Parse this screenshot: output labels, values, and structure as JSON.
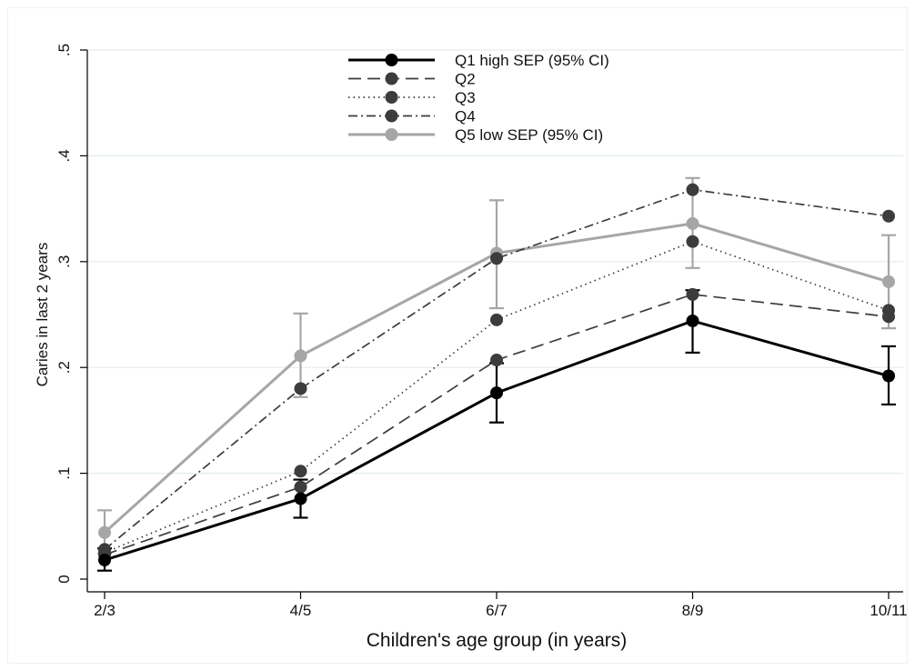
{
  "chart_data": {
    "type": "line",
    "xlabel": "Children's age group (in years)",
    "ylabel": "Caries in last 2 years",
    "categories": [
      "2/3",
      "4/5",
      "6/7",
      "8/9",
      "10/11"
    ],
    "ylim": [
      0,
      0.5
    ],
    "yticks": [
      {
        "value": 0,
        "label": "0"
      },
      {
        "value": 0.1,
        "label": ".1"
      },
      {
        "value": 0.2,
        "label": ".2"
      },
      {
        "value": 0.3,
        "label": ".3"
      },
      {
        "value": 0.4,
        "label": ".4"
      },
      {
        "value": 0.5,
        "label": ".5"
      }
    ],
    "grid": true,
    "legend_position": "top-center",
    "series": [
      {
        "name": "Q1 high SEP (95% CI)",
        "color": "#000000",
        "dash": "solid",
        "values": [
          0.018,
          0.076,
          0.176,
          0.244,
          0.192
        ],
        "ci_low": [
          0.008,
          0.058,
          0.148,
          0.214,
          0.165
        ],
        "ci_high": [
          0.029,
          0.094,
          0.204,
          0.273,
          0.22
        ]
      },
      {
        "name": "Q2",
        "color": "#3c3c3c",
        "dash": "dashed",
        "values": [
          0.023,
          0.087,
          0.207,
          0.269,
          0.248
        ]
      },
      {
        "name": "Q3",
        "color": "#3c3c3c",
        "dash": "dotted",
        "values": [
          0.025,
          0.102,
          0.245,
          0.319,
          0.254
        ]
      },
      {
        "name": "Q4",
        "color": "#3c3c3c",
        "dash": "dashdot",
        "values": [
          0.028,
          0.18,
          0.303,
          0.368,
          0.343
        ]
      },
      {
        "name": "Q5 low SEP (95% CI)",
        "color": "#a6a6a6",
        "dash": "solid",
        "values": [
          0.044,
          0.211,
          0.308,
          0.336,
          0.281
        ],
        "ci_low": [
          0.024,
          0.172,
          0.256,
          0.294,
          0.237
        ],
        "ci_high": [
          0.065,
          0.251,
          0.358,
          0.379,
          0.325
        ]
      }
    ]
  }
}
